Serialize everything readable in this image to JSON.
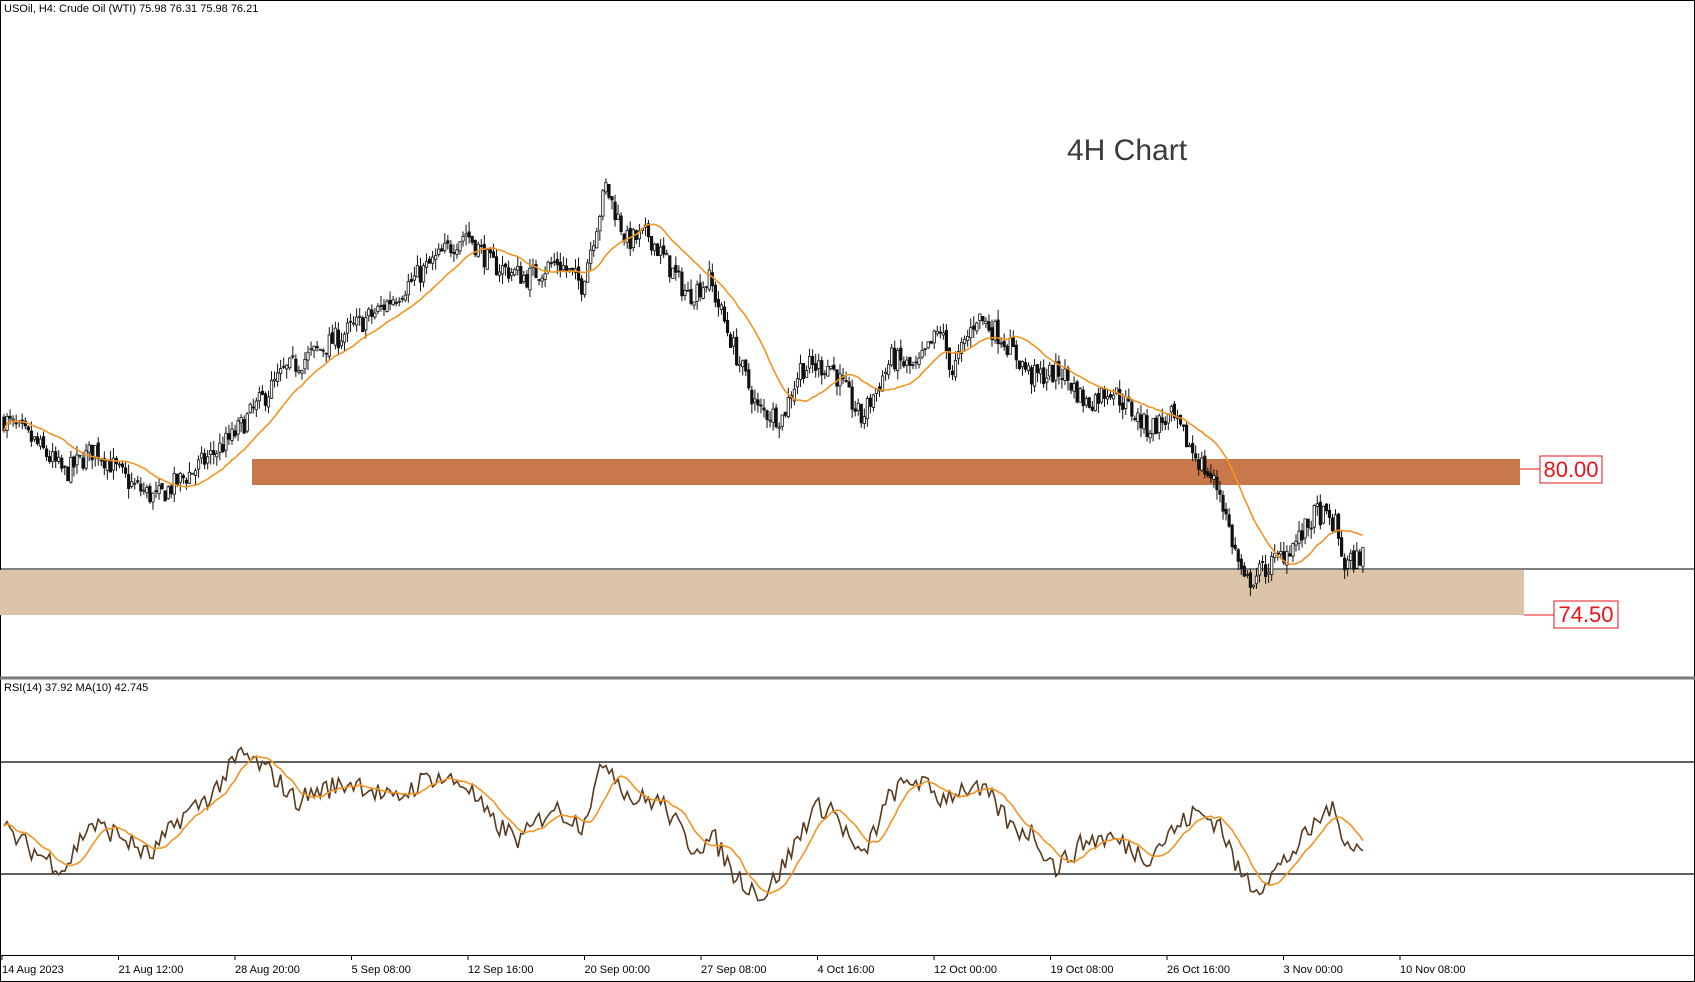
{
  "chart_header": {
    "symbol_info": "USOil, H4:  Crude Oil (WTI)  75.98 76.31 75.98 76.21",
    "rsi_info": "RSI(14) 37.92 MA(10) 42.745"
  },
  "annotation": {
    "title": "4H Chart"
  },
  "levels": [
    {
      "label": "80.00",
      "color": "#c8784a"
    },
    {
      "label": "74.50",
      "color": "#dcc4a8"
    }
  ],
  "colors": {
    "candle": "#111111",
    "ma": "#f29422",
    "rsi": "#5a3a1e",
    "rsi_ma": "#f29422",
    "level_text": "#e8131b"
  },
  "x_axis": {
    "labels": [
      "14 Aug 2023",
      "21 Aug 12:00",
      "28 Aug 20:00",
      "5 Sep 08:00",
      "12 Sep 16:00",
      "20 Sep 00:00",
      "27 Sep 08:00",
      "4 Oct 16:00",
      "12 Oct 00:00",
      "19 Oct 08:00",
      "26 Oct 16:00",
      "3 Nov 00:00",
      "10 Nov 08:00"
    ]
  },
  "chart_data": [
    {
      "type": "candlestick",
      "title": "USOil, H4",
      "price_anchors": [
        [
          0,
          82.2
        ],
        [
          10,
          81.2
        ],
        [
          20,
          79.8
        ],
        [
          30,
          80.9
        ],
        [
          42,
          79.3
        ],
        [
          50,
          78.7
        ],
        [
          62,
          79.9
        ],
        [
          75,
          81.4
        ],
        [
          92,
          84.3
        ],
        [
          105,
          85.4
        ],
        [
          122,
          86.9
        ],
        [
          138,
          88.8
        ],
        [
          152,
          90.5
        ],
        [
          160,
          89.1
        ],
        [
          172,
          88.5
        ],
        [
          182,
          89.2
        ],
        [
          190,
          88.2
        ],
        [
          198,
          92.5
        ],
        [
          205,
          90.1
        ],
        [
          212,
          90.4
        ],
        [
          225,
          87.7
        ],
        [
          232,
          88.4
        ],
        [
          240,
          85.4
        ],
        [
          248,
          82.6
        ],
        [
          256,
          82.3
        ],
        [
          262,
          84.5
        ],
        [
          272,
          84.6
        ],
        [
          282,
          82.2
        ],
        [
          292,
          84.9
        ],
        [
          300,
          84.4
        ],
        [
          308,
          86.2
        ],
        [
          312,
          84.3
        ],
        [
          320,
          86.8
        ],
        [
          328,
          85.9
        ],
        [
          338,
          84.1
        ],
        [
          348,
          84.3
        ],
        [
          356,
          82.9
        ],
        [
          364,
          83.6
        ],
        [
          376,
          81.8
        ],
        [
          384,
          82.3
        ],
        [
          392,
          80.6
        ],
        [
          400,
          79.0
        ],
        [
          404,
          76.8
        ],
        [
          408,
          74.9
        ],
        [
          418,
          75.9
        ],
        [
          426,
          76.9
        ],
        [
          432,
          78.1
        ],
        [
          438,
          77.5
        ],
        [
          441,
          75.7
        ],
        [
          447,
          76.2
        ]
      ],
      "moving_average_label": "MA",
      "y_scale_hint": "price"
    },
    {
      "type": "line",
      "title": "RSI(14) 37.92 MA(10) 42.745",
      "levels": [
        70,
        30
      ],
      "rsi_anchors": [
        [
          0,
          46
        ],
        [
          10,
          38
        ],
        [
          20,
          32
        ],
        [
          28,
          48
        ],
        [
          38,
          44
        ],
        [
          48,
          36
        ],
        [
          58,
          50
        ],
        [
          68,
          58
        ],
        [
          78,
          73
        ],
        [
          88,
          66
        ],
        [
          96,
          56
        ],
        [
          104,
          60
        ],
        [
          116,
          63
        ],
        [
          128,
          56
        ],
        [
          140,
          65
        ],
        [
          152,
          62
        ],
        [
          160,
          49
        ],
        [
          170,
          42
        ],
        [
          180,
          54
        ],
        [
          190,
          48
        ],
        [
          198,
          71
        ],
        [
          206,
          57
        ],
        [
          216,
          56
        ],
        [
          226,
          40
        ],
        [
          234,
          42
        ],
        [
          240,
          30
        ],
        [
          250,
          22
        ],
        [
          258,
          36
        ],
        [
          266,
          53
        ],
        [
          272,
          54
        ],
        [
          282,
          35
        ],
        [
          292,
          59
        ],
        [
          300,
          64
        ],
        [
          308,
          57
        ],
        [
          316,
          61
        ],
        [
          324,
          58
        ],
        [
          332,
          46
        ],
        [
          338,
          45
        ],
        [
          346,
          32
        ],
        [
          356,
          42
        ],
        [
          364,
          43
        ],
        [
          376,
          36
        ],
        [
          384,
          45
        ],
        [
          392,
          52
        ],
        [
          400,
          48
        ],
        [
          406,
          31
        ],
        [
          412,
          25
        ],
        [
          420,
          33
        ],
        [
          428,
          43
        ],
        [
          436,
          54
        ],
        [
          442,
          42
        ],
        [
          447,
          37.92
        ]
      ]
    }
  ]
}
